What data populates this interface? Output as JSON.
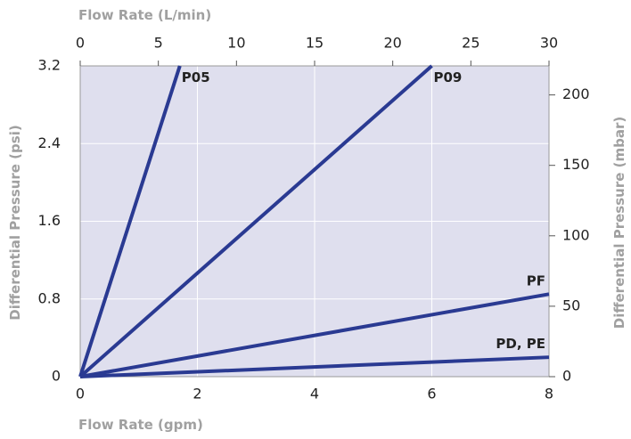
{
  "chart_data": {
    "type": "line",
    "title": "",
    "colors": {
      "plot_bg": "#dfdfee",
      "line": "#2a3a92",
      "grid": "#ffffff",
      "axis_title": "#a0a0a0",
      "tick": "#222222"
    },
    "grid": true,
    "x_bottom": {
      "label": "Flow Rate (gpm)",
      "range": [
        0,
        8
      ],
      "ticks": [
        0,
        2,
        4,
        6,
        8
      ]
    },
    "x_top": {
      "label": "Flow Rate (L/min)",
      "range": [
        0,
        30
      ],
      "ticks": [
        0,
        5,
        10,
        15,
        20,
        25,
        30
      ]
    },
    "y_left": {
      "label": "Differential Pressure (psi)",
      "range": [
        0,
        3.2
      ],
      "ticks": [
        0,
        0.8,
        1.6,
        2.4,
        3.2
      ]
    },
    "y_right": {
      "label": "Differential Pressure (mbar)",
      "range": [
        0,
        220.6
      ],
      "ticks": [
        0,
        50,
        100,
        150,
        200
      ]
    },
    "series": [
      {
        "name": "P05",
        "x": [
          0,
          1.7
        ],
        "y": [
          0,
          3.2
        ]
      },
      {
        "name": "P09",
        "x": [
          0,
          6.0
        ],
        "y": [
          0,
          3.2
        ]
      },
      {
        "name": "PF",
        "x": [
          0,
          8.0
        ],
        "y": [
          0,
          0.85
        ]
      },
      {
        "name": "PD, PE",
        "x": [
          0,
          8.0
        ],
        "y": [
          0,
          0.2
        ]
      }
    ]
  }
}
